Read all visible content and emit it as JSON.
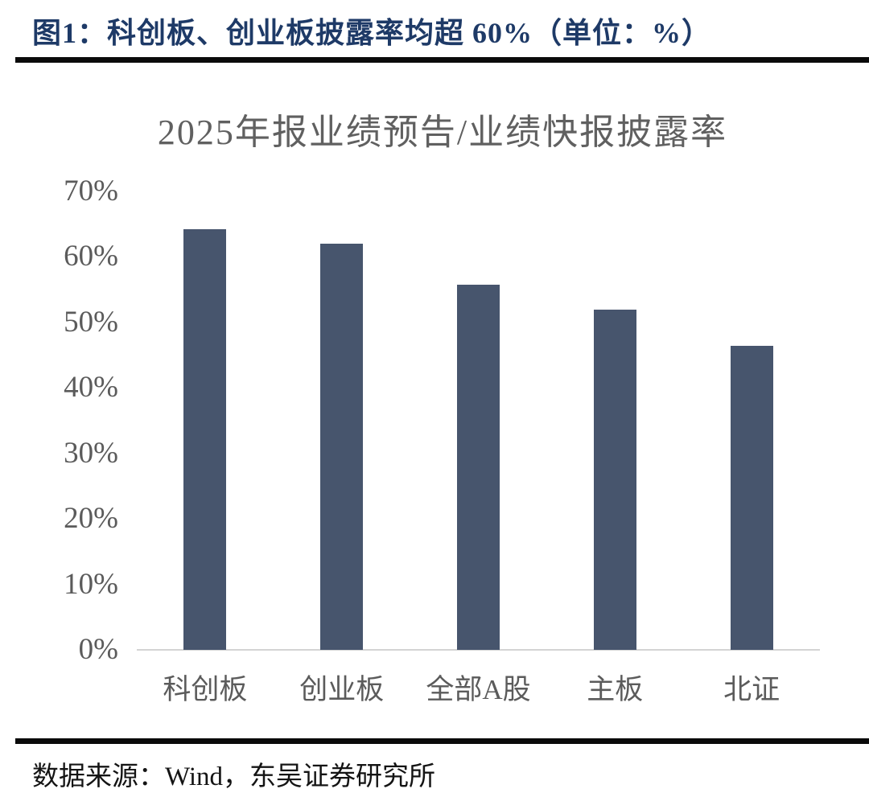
{
  "figure": {
    "title": "图1：科创板、创业板披露率均超 60%（单位：%）",
    "source": "数据来源：Wind，东吴证券研究所"
  },
  "chart_data": {
    "type": "bar",
    "title": "2025年报业绩预告/业绩快报披露率",
    "categories": [
      "科创板",
      "创业板",
      "全部A股",
      "主板",
      "北证"
    ],
    "values": [
      64.2,
      62.0,
      55.8,
      51.9,
      46.4
    ],
    "unit": "%",
    "xlabel": "",
    "ylabel": "",
    "ylim": [
      0,
      70
    ],
    "yticks": [
      0,
      10,
      20,
      30,
      40,
      50,
      60,
      70
    ],
    "ytick_suffix": "%",
    "grid": false,
    "legend": false,
    "bar_color": "#47556D"
  },
  "colors": {
    "figure_title": "#1E3A67",
    "chart_title": "#606060",
    "axis_text": "#5B5B5B",
    "bar": "#47556D",
    "baseline": "#D4D4D4",
    "divider": "#0A0A0A",
    "source_text": "#141414"
  }
}
